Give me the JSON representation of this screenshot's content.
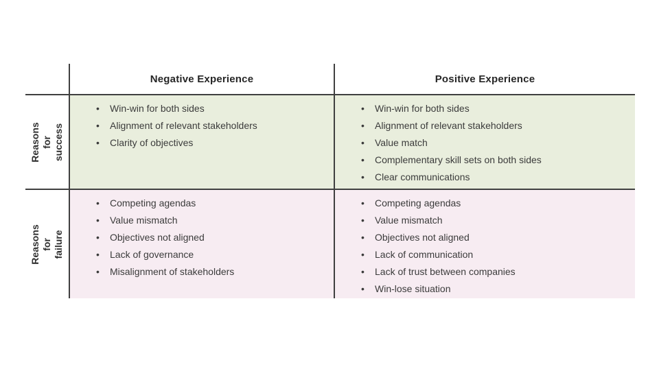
{
  "table": {
    "column_headers": [
      "Negative Experience",
      "Positive Experience"
    ],
    "row_headers": [
      "Reasons for success",
      "Reasons for failure"
    ],
    "cells": {
      "success_negative": [
        "Win-win for both sides",
        "Alignment of relevant stakeholders",
        "Clarity of objectives"
      ],
      "success_positive": [
        "Win-win for both sides",
        "Alignment of relevant stakeholders",
        "Value match",
        "Complementary skill sets on both sides",
        "Clear communications"
      ],
      "failure_negative": [
        "Competing agendas",
        "Value mismatch",
        "Objectives not aligned",
        "Lack of governance",
        "Misalignment of stakeholders"
      ],
      "failure_positive": [
        "Competing agendas",
        "Value mismatch",
        "Objectives not aligned",
        "Lack of communication",
        "Lack of trust between companies",
        "Win-lose situation"
      ]
    },
    "colors": {
      "success_row_bg": "#e9eedd",
      "failure_row_bg": "#f7ecf2",
      "grid_line": "#3f3f3f",
      "body_text": "#3b3b3b",
      "header_text": "#262626"
    }
  }
}
